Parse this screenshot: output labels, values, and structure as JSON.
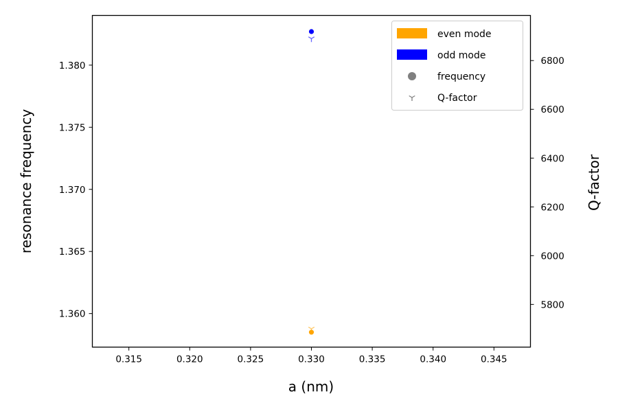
{
  "chart_data": {
    "type": "scatter",
    "xlabel": "a (nm)",
    "ylabel": "resonance frequency",
    "y2label": "Q-factor",
    "xlim": [
      0.312,
      0.348
    ],
    "ylim": [
      1.3573,
      1.384
    ],
    "y2lim": [
      5625,
      6985
    ],
    "x_ticks": [
      0.315,
      0.32,
      0.325,
      0.33,
      0.335,
      0.34,
      0.345
    ],
    "x_tick_labels": [
      "0.315",
      "0.320",
      "0.325",
      "0.330",
      "0.335",
      "0.340",
      "0.345"
    ],
    "y_ticks": [
      1.36,
      1.365,
      1.37,
      1.375,
      1.38
    ],
    "y_tick_labels": [
      "1.360",
      "1.365",
      "1.370",
      "1.375",
      "1.380"
    ],
    "y2_ticks": [
      5800,
      6000,
      6200,
      6400,
      6600,
      6800
    ],
    "y2_tick_labels": [
      "5800",
      "6000",
      "6200",
      "6400",
      "6600",
      "6800"
    ],
    "series": [
      {
        "name": "even mode",
        "color": "#ffa500",
        "frequency": [
          {
            "x": 0.33,
            "y": 1.3585
          }
        ],
        "q_factor": [
          {
            "x": 0.33,
            "y": 5700
          }
        ]
      },
      {
        "name": "odd mode",
        "color": "#0000ff",
        "frequency": [
          {
            "x": 0.33,
            "y": 1.3827
          }
        ],
        "q_factor": [
          {
            "x": 0.33,
            "y": 6890
          }
        ]
      }
    ],
    "legend": {
      "position": "top-right",
      "entries": [
        {
          "label": "even mode",
          "kind": "patch",
          "color": "#ffa500"
        },
        {
          "label": "odd mode",
          "kind": "patch",
          "color": "#0000ff"
        },
        {
          "label": "frequency",
          "kind": "circle-marker",
          "color": "#808080"
        },
        {
          "label": "Q-factor",
          "kind": "tri-down-marker",
          "color": "#808080"
        }
      ]
    },
    "grid": false
  }
}
